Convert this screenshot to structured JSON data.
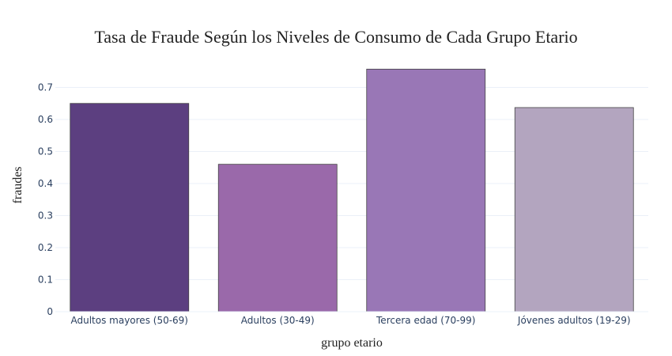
{
  "chart_data": {
    "type": "bar",
    "title": "Tasa de Fraude Según los Niveles de Consumo de Cada Grupo Etario",
    "xlabel": "grupo etario",
    "ylabel": "fraudes",
    "categories": [
      "Adultos mayores (50-69)",
      "Adultos (30-49)",
      "Tercera edad (70-99)",
      "Jóvenes adultos (19-29)"
    ],
    "values": [
      0.65,
      0.46,
      0.757,
      0.637
    ],
    "colors": [
      "#5c3f80",
      "#9a69aa",
      "#9977b6",
      "#b3a5bf"
    ],
    "ylim": [
      0,
      0.79
    ],
    "yticks": [
      "0",
      "0.1",
      "0.2",
      "0.3",
      "0.4",
      "0.5",
      "0.6",
      "0.7"
    ],
    "grid": true,
    "legend": "none"
  }
}
